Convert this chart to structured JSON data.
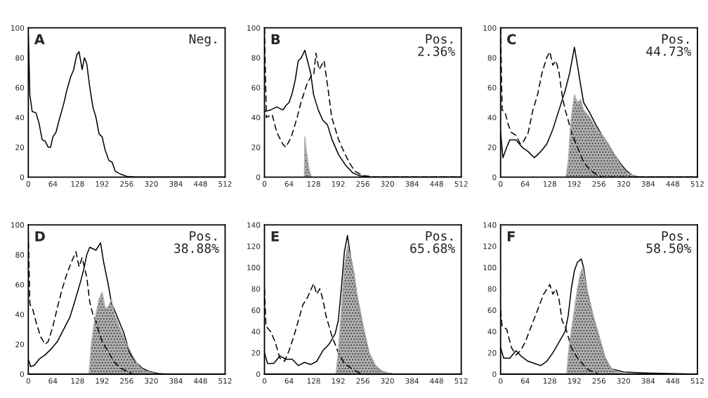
{
  "chart_data": [
    {
      "type": "line",
      "annotations": [
        "A",
        "Neg."
      ],
      "xlim": [
        0,
        512
      ],
      "xticks": [
        0,
        64,
        128,
        192,
        256,
        320,
        384,
        448,
        512
      ],
      "ylim": [
        0,
        100
      ],
      "yticks": [
        0,
        20,
        40,
        60,
        80,
        100
      ],
      "grid": false,
      "marker": "none",
      "series": [
        {
          "type": "line",
          "line_style": "solid",
          "color": "#000000",
          "x": [
            0,
            4,
            10,
            20,
            28,
            36,
            44,
            52,
            58,
            64,
            72,
            80,
            92,
            100,
            110,
            118,
            126,
            132,
            140,
            146,
            152,
            160,
            168,
            176,
            184,
            192,
            200,
            210,
            218,
            226,
            240,
            256,
            280,
            512
          ],
          "values": [
            97,
            55,
            44,
            43,
            36,
            25,
            24,
            20,
            20,
            27,
            30,
            38,
            49,
            58,
            67,
            72,
            82,
            84,
            72,
            80,
            76,
            60,
            47,
            40,
            29,
            27,
            18,
            11,
            10,
            4,
            2,
            0.5,
            0,
            0
          ]
        }
      ]
    },
    {
      "type": "line",
      "annotations": [
        "B",
        "Pos.\n2.36%"
      ],
      "xlim": [
        0,
        512
      ],
      "xticks": [
        0,
        64,
        128,
        192,
        256,
        320,
        384,
        448,
        512
      ],
      "ylim": [
        0,
        100
      ],
      "yticks": [
        0,
        20,
        40,
        60,
        80,
        100
      ],
      "grid": false,
      "marker": "none",
      "series": [
        {
          "type": "line",
          "line_style": "dashed",
          "color": "#000000",
          "x": [
            0,
            5,
            20,
            32,
            48,
            56,
            70,
            85,
            95,
            110,
            122,
            128,
            134,
            142,
            155,
            165,
            175,
            193,
            205,
            220,
            235,
            256,
            290,
            512
          ],
          "values": [
            100,
            40,
            42,
            30,
            22,
            20,
            27,
            40,
            50,
            62,
            68,
            68,
            83,
            72,
            78,
            60,
            40,
            25,
            18,
            10,
            4,
            1,
            0,
            0
          ]
        },
        {
          "type": "line",
          "line_style": "solid",
          "color": "#000000",
          "x": [
            0,
            16,
            32,
            48,
            56,
            64,
            72,
            80,
            88,
            96,
            105,
            112,
            120,
            128,
            140,
            152,
            164,
            176,
            193,
            211,
            229,
            247,
            272,
            512
          ],
          "values": [
            44,
            45,
            47,
            45,
            48,
            50,
            56,
            65,
            78,
            80,
            85,
            78,
            70,
            55,
            45,
            38,
            35,
            25,
            15,
            8,
            3,
            1,
            0,
            0
          ]
        },
        {
          "type": "area",
          "line_style": "solid",
          "color": "#b0b0b0",
          "x": [
            104,
            105,
            110,
            116,
            122
          ],
          "values": [
            0,
            27,
            15,
            5,
            0
          ]
        }
      ]
    },
    {
      "type": "line",
      "annotations": [
        "C",
        "Pos.\n44.73%"
      ],
      "xlim": [
        0,
        512
      ],
      "xticks": [
        0,
        64,
        128,
        192,
        256,
        320,
        384,
        448,
        512
      ],
      "ylim": [
        0,
        100
      ],
      "yticks": [
        0,
        20,
        40,
        60,
        80,
        100
      ],
      "grid": false,
      "marker": "none",
      "series": [
        {
          "type": "line",
          "line_style": "dashed",
          "color": "#000000",
          "x": [
            0,
            4,
            12,
            20,
            28,
            40,
            52,
            60,
            72,
            84,
            96,
            108,
            120,
            128,
            136,
            144,
            152,
            160,
            168,
            176,
            184,
            192,
            200,
            208,
            216,
            232,
            248,
            264,
            512
          ],
          "values": [
            100,
            45,
            43,
            35,
            30,
            28,
            22,
            24,
            30,
            45,
            55,
            70,
            80,
            84,
            75,
            78,
            70,
            55,
            45,
            38,
            30,
            25,
            20,
            15,
            10,
            5,
            2,
            0,
            0
          ]
        },
        {
          "type": "line",
          "line_style": "solid",
          "color": "#000000",
          "x": [
            0,
            6,
            16,
            24,
            40,
            56,
            72,
            88,
            104,
            120,
            136,
            152,
            168,
            180,
            192,
            200,
            208,
            216,
            232,
            248,
            264,
            280,
            296,
            312,
            328,
            344,
            360,
            512
          ],
          "values": [
            30,
            13,
            20,
            25,
            25,
            20,
            17,
            13,
            17,
            22,
            32,
            45,
            58,
            70,
            87,
            75,
            62,
            50,
            43,
            35,
            28,
            22,
            15,
            9,
            4,
            1,
            0,
            0
          ]
        },
        {
          "type": "area",
          "line_style": "solid",
          "color": "#b0b0b0",
          "x": [
            170,
            176,
            184,
            192,
            200,
            208,
            216,
            232,
            248,
            264,
            280,
            296,
            312,
            328,
            344,
            352
          ],
          "values": [
            0,
            10,
            40,
            55,
            50,
            52,
            45,
            40,
            33,
            28,
            22,
            15,
            8,
            3,
            1,
            0
          ]
        }
      ]
    },
    {
      "type": "line",
      "annotations": [
        "D",
        "Pos.\n38.88%"
      ],
      "xlim": [
        0,
        512
      ],
      "xticks": [
        0,
        64,
        128,
        192,
        256,
        320,
        384,
        448,
        512
      ],
      "ylim": [
        0,
        100
      ],
      "yticks": [
        0,
        20,
        40,
        60,
        80,
        100
      ],
      "grid": false,
      "marker": "none",
      "series": [
        {
          "type": "line",
          "line_style": "dashed",
          "color": "#000000",
          "x": [
            0,
            4,
            12,
            20,
            32,
            44,
            52,
            64,
            76,
            88,
            100,
            112,
            124,
            132,
            140,
            152,
            160,
            168,
            176,
            184,
            192,
            208,
            224,
            240,
            256,
            272,
            512
          ],
          "values": [
            95,
            47,
            43,
            35,
            25,
            20,
            22,
            32,
            45,
            57,
            67,
            75,
            82,
            72,
            78,
            65,
            48,
            40,
            35,
            28,
            22,
            15,
            8,
            4,
            2,
            0,
            0
          ]
        },
        {
          "type": "line",
          "line_style": "solid",
          "color": "#000000",
          "x": [
            0,
            6,
            16,
            28,
            44,
            60,
            76,
            92,
            108,
            120,
            136,
            144,
            152,
            160,
            176,
            188,
            196,
            208,
            216,
            232,
            248,
            264,
            280,
            296,
            312,
            336,
            360,
            512
          ],
          "values": [
            10,
            5,
            6,
            10,
            13,
            17,
            22,
            30,
            38,
            48,
            62,
            70,
            80,
            85,
            83,
            88,
            75,
            60,
            48,
            38,
            28,
            14,
            8,
            4,
            2,
            0.5,
            0,
            0
          ]
        },
        {
          "type": "area",
          "line_style": "solid",
          "color": "#b0b0b0",
          "x": [
            158,
            164,
            172,
            184,
            192,
            200,
            208,
            216,
            224,
            240,
            256,
            272,
            288,
            304,
            320,
            336
          ],
          "values": [
            0,
            20,
            35,
            50,
            55,
            44,
            45,
            50,
            40,
            30,
            20,
            12,
            5,
            2,
            1,
            0
          ]
        }
      ]
    },
    {
      "type": "line",
      "annotations": [
        "E",
        "Pos.\n65.68%"
      ],
      "xlim": [
        0,
        512
      ],
      "xticks": [
        0,
        64,
        128,
        192,
        256,
        320,
        384,
        448,
        512
      ],
      "ylim": [
        0,
        140
      ],
      "yticks": [
        0,
        20,
        40,
        60,
        80,
        100,
        120,
        140
      ],
      "grid": false,
      "marker": "none",
      "series": [
        {
          "type": "line",
          "line_style": "dashed",
          "color": "#000000",
          "x": [
            0,
            4,
            16,
            28,
            40,
            52,
            64,
            76,
            88,
            100,
            112,
            128,
            136,
            144,
            152,
            160,
            168,
            176,
            184,
            192,
            200,
            208,
            216,
            232,
            248,
            264,
            512
          ],
          "values": [
            80,
            45,
            40,
            30,
            15,
            12,
            22,
            35,
            50,
            65,
            72,
            85,
            75,
            80,
            70,
            55,
            45,
            35,
            28,
            20,
            15,
            10,
            8,
            4,
            1,
            0,
            0
          ]
        },
        {
          "type": "line",
          "line_style": "solid",
          "color": "#000000",
          "x": [
            0,
            8,
            24,
            40,
            56,
            72,
            88,
            104,
            120,
            136,
            152,
            168,
            184,
            192,
            200,
            208,
            216,
            224,
            232,
            240,
            256,
            272,
            288,
            304,
            320,
            336,
            512
          ],
          "values": [
            20,
            10,
            10,
            17,
            14,
            14,
            8,
            11,
            9,
            12,
            22,
            28,
            38,
            50,
            80,
            115,
            130,
            110,
            95,
            75,
            45,
            20,
            8,
            3,
            1,
            0,
            0
          ]
        },
        {
          "type": "area",
          "line_style": "solid",
          "color": "#b0b0b0",
          "x": [
            186,
            192,
            200,
            208,
            216,
            224,
            232,
            240,
            256,
            272,
            288,
            304,
            320,
            336
          ],
          "values": [
            0,
            20,
            60,
            100,
            120,
            110,
            95,
            75,
            45,
            20,
            8,
            3,
            1,
            0
          ]
        }
      ]
    },
    {
      "type": "line",
      "annotations": [
        "F",
        "Pos.\n58.50%"
      ],
      "xlim": [
        0,
        512
      ],
      "xticks": [
        0,
        64,
        128,
        192,
        256,
        320,
        384,
        448,
        512
      ],
      "ylim": [
        0,
        140
      ],
      "yticks": [
        0,
        20,
        40,
        60,
        80,
        100,
        120,
        140
      ],
      "grid": false,
      "marker": "none",
      "series": [
        {
          "type": "line",
          "line_style": "dashed",
          "color": "#000000",
          "x": [
            0,
            4,
            16,
            28,
            40,
            52,
            64,
            80,
            96,
            112,
            128,
            136,
            144,
            152,
            160,
            168,
            176,
            184,
            192,
            200,
            208,
            224,
            240,
            256,
            512
          ],
          "values": [
            60,
            45,
            42,
            25,
            18,
            22,
            30,
            45,
            60,
            75,
            84,
            75,
            80,
            70,
            50,
            45,
            35,
            25,
            20,
            15,
            12,
            5,
            2,
            0,
            0
          ]
        },
        {
          "type": "line",
          "line_style": "solid",
          "color": "#000000",
          "x": [
            0,
            8,
            24,
            40,
            56,
            72,
            88,
            104,
            120,
            136,
            152,
            168,
            176,
            184,
            192,
            200,
            210,
            216,
            224,
            240,
            256,
            272,
            288,
            320,
            384,
            448,
            512
          ],
          "values": [
            25,
            15,
            15,
            22,
            16,
            12,
            10,
            8,
            12,
            20,
            30,
            40,
            55,
            80,
            97,
            105,
            108,
            100,
            80,
            55,
            35,
            15,
            5,
            2,
            1,
            0.5,
            0
          ]
        },
        {
          "type": "area",
          "line_style": "solid",
          "color": "#b0b0b0",
          "x": [
            172,
            178,
            192,
            200,
            208,
            214,
            224,
            240,
            256,
            272,
            288,
            304,
            320
          ],
          "values": [
            0,
            25,
            60,
            80,
            95,
            100,
            80,
            55,
            35,
            15,
            5,
            2,
            0
          ]
        }
      ]
    }
  ]
}
